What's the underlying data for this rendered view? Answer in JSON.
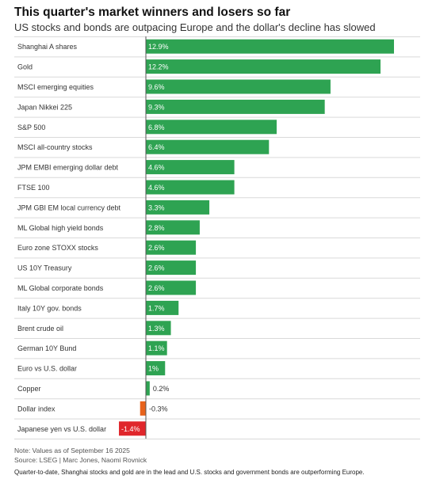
{
  "title": "This quarter's market winners and losers so far",
  "subtitle": "US stocks and bonds are outpacing Europe and the dollar's decline has slowed",
  "note": "Note: Values as of September 16 2025",
  "source": "Source: LSEG  | Marc Jones, Naomi Rovnick",
  "caption": "Quarter-to-date, Shanghai stocks and gold are in the lead and U.S. stocks and government bonds are outperforming Europe.",
  "colors": {
    "positive": "#2ea352",
    "negative_large": "#e0262b",
    "negative_small": "#e8631c",
    "grid": "#d9d9d9"
  },
  "chart_data": {
    "type": "bar",
    "orientation": "horizontal",
    "categories": [
      "Shanghai A shares",
      "Gold",
      "MSCI emerging equities",
      "Japan Nikkei 225",
      "S&P 500",
      "MSCI all-country stocks",
      "JPM EMBI emerging dollar debt",
      "FTSE 100",
      "JPM GBI EM local currency debt",
      "ML Global high yield bonds",
      "Euro zone STOXX stocks",
      "US 10Y Treasury",
      "ML Global corporate bonds",
      "Italy 10Y gov. bonds",
      "Brent crude oil",
      "German 10Y Bund",
      "Euro vs U.S. dollar",
      "Copper",
      "Dollar index",
      "Japanese yen vs U.S. dollar"
    ],
    "values": [
      12.9,
      12.2,
      9.6,
      9.3,
      6.8,
      6.4,
      4.6,
      4.6,
      3.3,
      2.8,
      2.6,
      2.6,
      2.6,
      1.7,
      1.3,
      1.1,
      1.0,
      0.2,
      -0.3,
      -1.4
    ],
    "labels": [
      "12.9%",
      "12.2%",
      "9.6%",
      "9.3%",
      "6.8%",
      "6.4%",
      "4.6%",
      "4.6%",
      "3.3%",
      "2.8%",
      "2.6%",
      "2.6%",
      "2.6%",
      "1.7%",
      "1.3%",
      "1.1%",
      "1%",
      "0.2%",
      "-0.3%",
      "-1.4%"
    ],
    "title": "This quarter's market winners and losers so far",
    "subtitle": "US stocks and bonds are outpacing Europe and the dollar's decline has slowed",
    "xlabel": "",
    "ylabel": "",
    "xlim": [
      -1.4,
      12.9
    ],
    "grid": true,
    "legend": "none"
  }
}
